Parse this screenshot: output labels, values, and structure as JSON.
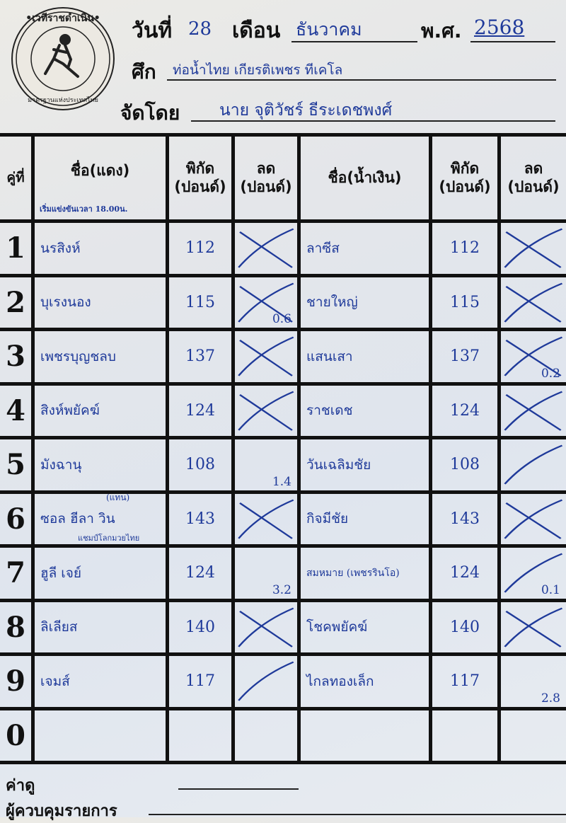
{
  "header": {
    "logo_text": "เวทีราชดำเนิน • สนามมวยมาตรฐานแห่งประเทศไทย",
    "date_label": "วันที่",
    "day": "28",
    "month_label": "เดือน",
    "month": "ธันวาคม",
    "year_label": "พ.ศ.",
    "year": "2568",
    "event_label": "ศึก",
    "event": "ท่อน้ำไทย เกียรติเพชร ทีเคโล",
    "organizer_label": "จัดโดย",
    "organizer": "นาย จุติวัชร์ ธีระเดชพงศ์"
  },
  "table": {
    "headers": {
      "pair": "คู่ที่",
      "red_name": "ชื่อ(แดง)",
      "red_weight": "พิกัด (ปอนด์)",
      "red_reduce": "ลด (ปอนด์)",
      "blue_name": "ชื่อ(น้ำเงิน)",
      "blue_weight": "พิกัด (ปอนด์)",
      "blue_reduce": "ลด (ปอนด์)"
    },
    "start_note": "เริ่มแข่งขันเวลา 18.00น.",
    "rows": [
      {
        "no": "1",
        "red": "นรสิงห์",
        "red_note": "",
        "red_sub": "",
        "red_weight": "112",
        "red_mark": "x",
        "red_ded": "",
        "blue": "ลาซีส",
        "blue_weight": "112",
        "blue_mark": "x",
        "blue_ded": ""
      },
      {
        "no": "2",
        "red": "บุเรงนอง",
        "red_note": "",
        "red_sub": "",
        "red_weight": "115",
        "red_mark": "x",
        "red_ded": "0.6",
        "blue": "ชายใหญ่",
        "blue_weight": "115",
        "blue_mark": "x",
        "blue_ded": ""
      },
      {
        "no": "3",
        "red": "เพชรบุญชลบ",
        "red_note": "",
        "red_sub": "",
        "red_weight": "137",
        "red_mark": "x",
        "red_ded": "",
        "blue": "แสนเสา",
        "blue_weight": "137",
        "blue_mark": "x",
        "blue_ded": "0.2"
      },
      {
        "no": "4",
        "red": "สิงห์พยัคฆ์",
        "red_note": "",
        "red_sub": "",
        "red_weight": "124",
        "red_mark": "x",
        "red_ded": "",
        "blue": "ราชเดช",
        "blue_weight": "124",
        "blue_mark": "x",
        "blue_ded": ""
      },
      {
        "no": "5",
        "red": "มังฉานุ",
        "red_note": "",
        "red_sub": "",
        "red_weight": "108",
        "red_mark": "none",
        "red_ded": "1.4",
        "blue": "วันเฉลิมชัย",
        "blue_weight": "108",
        "blue_mark": "slash",
        "blue_ded": ""
      },
      {
        "no": "6",
        "red": "ซอล ฮีลา วิน",
        "red_note": "(แทน)",
        "red_sub": "แชมป์โลกมวยไทย",
        "red_weight": "143",
        "red_mark": "x",
        "red_ded": "",
        "blue": "กิจมีชัย",
        "blue_weight": "143",
        "blue_mark": "x",
        "blue_ded": ""
      },
      {
        "no": "7",
        "red": "ฮูลี เจย์",
        "red_note": "",
        "red_sub": "",
        "red_weight": "124",
        "red_mark": "none",
        "red_ded": "3.2",
        "blue": "สมหมาย (เพชรรินโอ)",
        "blue_weight": "124",
        "blue_mark": "slash",
        "blue_ded": "0.1"
      },
      {
        "no": "8",
        "red": "ลิเลียส",
        "red_note": "",
        "red_sub": "",
        "red_weight": "140",
        "red_mark": "x",
        "red_ded": "",
        "blue": "โชคพยัคฆ์",
        "blue_weight": "140",
        "blue_mark": "x",
        "blue_ded": ""
      },
      {
        "no": "9",
        "red": "เจมส์",
        "red_note": "",
        "red_sub": "",
        "red_weight": "117",
        "red_mark": "slash",
        "red_ded": "",
        "blue": "ไกลทองเล็ก",
        "blue_weight": "117",
        "blue_mark": "none",
        "blue_ded": "2.8"
      },
      {
        "no": "0",
        "red": "",
        "red_note": "",
        "red_sub": "",
        "red_weight": "",
        "red_mark": "none",
        "red_ded": "",
        "blue": "",
        "blue_weight": "",
        "blue_mark": "none",
        "blue_ded": ""
      }
    ]
  },
  "footer": {
    "fee_label": "ค่าดู",
    "controller_label": "ผู้ควบคุมรายการ"
  },
  "colors": {
    "ink_blue": "#1f3a9a",
    "board_line": "#111111",
    "board_bg": "#e4e8ee"
  }
}
